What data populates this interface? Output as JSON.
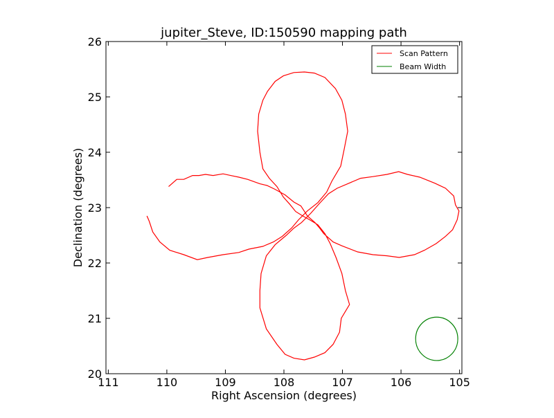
{
  "chart_data": {
    "type": "line",
    "title": "jupiter_Steve, ID:150590 mapping path",
    "xlabel": "Right Ascension (degrees)",
    "ylabel": "Declination (degrees)",
    "xlim": [
      111.04,
      104.96
    ],
    "ylim": [
      20,
      26
    ],
    "xticks": [
      111,
      110,
      109,
      108,
      107,
      106,
      105
    ],
    "yticks": [
      20,
      21,
      22,
      23,
      24,
      25,
      26
    ],
    "grid": false,
    "legend": {
      "placement": "top-right",
      "entries": [
        "Scan Pattern",
        "Beam Width"
      ]
    },
    "series": [
      {
        "name": "Scan Pattern",
        "color": "#ff0000",
        "ra": [
          109.97,
          109.83,
          109.71,
          109.56,
          109.45,
          109.34,
          109.21,
          109.04,
          108.91,
          108.77,
          108.62,
          108.41,
          108.29,
          108.15,
          107.98,
          107.83,
          107.71,
          107.6,
          107.47,
          107.39,
          107.32,
          107.16,
          107.01,
          106.74,
          106.48,
          106.24,
          106.03,
          105.77,
          105.6,
          105.4,
          105.24,
          105.12,
          105.04,
          105.01,
          105.07,
          105.1,
          105.24,
          105.42,
          105.68,
          105.89,
          106.04,
          106.24,
          106.48,
          106.69,
          106.89,
          107.09,
          107.24,
          107.39,
          107.54,
          107.7,
          107.83,
          107.96,
          108.15,
          108.3,
          108.39,
          108.41,
          108.41,
          108.3,
          108.12,
          107.98,
          107.83,
          107.65,
          107.48,
          107.3,
          107.16,
          107.05,
          107.02,
          106.88,
          106.95,
          107.01,
          107.11,
          107.21,
          107.3,
          107.42,
          107.56,
          107.68,
          107.8,
          107.9,
          108.01,
          108.12,
          108.25,
          108.36,
          108.41,
          108.45,
          108.43,
          108.36,
          108.28,
          108.15,
          108.01,
          107.83,
          107.65,
          107.48,
          107.3,
          107.12,
          107.01,
          106.95,
          106.91,
          106.97,
          107.03,
          107.18,
          107.27,
          107.42,
          107.6,
          107.75,
          107.87,
          108.03,
          108.18,
          108.36,
          108.6,
          108.77,
          109.04,
          109.3,
          109.48,
          109.71,
          109.95,
          110.12,
          110.24,
          110.3,
          110.34
        ],
        "dec": [
          23.38,
          23.51,
          23.51,
          23.58,
          23.58,
          23.6,
          23.58,
          23.61,
          23.58,
          23.55,
          23.51,
          23.43,
          23.4,
          23.33,
          23.23,
          23.1,
          23.03,
          22.85,
          22.73,
          22.63,
          22.53,
          22.38,
          22.31,
          22.2,
          22.15,
          22.13,
          22.1,
          22.15,
          22.23,
          22.35,
          22.48,
          22.6,
          22.78,
          22.94,
          23.05,
          23.21,
          23.35,
          23.44,
          23.55,
          23.6,
          23.65,
          23.6,
          23.56,
          23.53,
          23.44,
          23.35,
          23.25,
          23.08,
          22.9,
          22.73,
          22.63,
          22.5,
          22.33,
          22.13,
          21.81,
          21.5,
          21.19,
          20.81,
          20.53,
          20.35,
          20.28,
          20.25,
          20.3,
          20.38,
          20.53,
          20.75,
          21.0,
          21.25,
          21.5,
          21.81,
          22.1,
          22.35,
          22.53,
          22.69,
          22.78,
          22.85,
          22.93,
          23.06,
          23.19,
          23.38,
          23.53,
          23.7,
          24.0,
          24.38,
          24.69,
          24.94,
          25.1,
          25.28,
          25.38,
          25.44,
          25.45,
          25.43,
          25.35,
          25.15,
          24.94,
          24.69,
          24.38,
          24.06,
          23.75,
          23.48,
          23.28,
          23.09,
          22.94,
          22.78,
          22.63,
          22.48,
          22.38,
          22.3,
          22.25,
          22.19,
          22.15,
          22.1,
          22.06,
          22.15,
          22.23,
          22.38,
          22.56,
          22.75,
          22.85
        ]
      },
      {
        "name": "Beam Width",
        "color": "#008000",
        "center_ra": 105.39,
        "center_dec": 20.63,
        "radius_deg": 0.36
      }
    ]
  }
}
